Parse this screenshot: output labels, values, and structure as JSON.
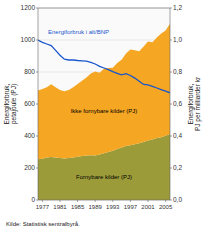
{
  "chart_data": {
    "type": "area",
    "stacked": true,
    "x": [
      1976,
      1977,
      1978,
      1979,
      1980,
      1981,
      1982,
      1983,
      1984,
      1985,
      1986,
      1987,
      1988,
      1989,
      1990,
      1991,
      1992,
      1993,
      1994,
      1995,
      1996,
      1997,
      1998,
      1999,
      2000,
      2001,
      2002,
      2003,
      2004,
      2005,
      2006
    ],
    "series": [
      {
        "name": "Fornybare kilder (PJ)",
        "color": "#9B9B3A",
        "type": "area",
        "values": [
          255,
          258,
          265,
          268,
          265,
          262,
          260,
          262,
          265,
          270,
          275,
          278,
          280,
          278,
          285,
          292,
          300,
          308,
          318,
          328,
          338,
          342,
          348,
          355,
          362,
          372,
          378,
          388,
          392,
          402,
          412
        ]
      },
      {
        "name": "Ikke fornybare kilder (PJ)",
        "color": "#F5A623",
        "type": "area",
        "values": [
          430,
          435,
          440,
          455,
          440,
          425,
          420,
          425,
          440,
          455,
          470,
          488,
          510,
          525,
          510,
          528,
          525,
          518,
          538,
          548,
          578,
          598,
          588,
          575,
          598,
          618,
          608,
          628,
          648,
          658,
          690
        ]
      },
      {
        "name": "Energiforbruk i alt/BNP",
        "color": "#1A56CC",
        "type": "line",
        "axis": "y2",
        "values": [
          1.0,
          0.985,
          0.975,
          0.965,
          0.935,
          0.905,
          0.88,
          0.875,
          0.875,
          0.872,
          0.87,
          0.868,
          0.86,
          0.85,
          0.835,
          0.825,
          0.815,
          0.802,
          0.792,
          0.782,
          0.79,
          0.778,
          0.762,
          0.742,
          0.722,
          0.72,
          0.71,
          0.7,
          0.69,
          0.68,
          0.67
        ]
      }
    ],
    "xlim": [
      1976,
      2006
    ],
    "xticks": [
      1977,
      1981,
      1985,
      1989,
      1993,
      1997,
      2001,
      2005
    ],
    "ylim": [
      0,
      1200
    ],
    "yticks": [
      0,
      200,
      400,
      600,
      800,
      1000,
      1200
    ],
    "y2lim": [
      0.0,
      1.2
    ],
    "y2ticks": [
      {
        "value": 0.0,
        "label": "0,0"
      },
      {
        "value": 0.2,
        "label": "0,2"
      },
      {
        "value": 0.4,
        "label": "0,4"
      },
      {
        "value": 0.6,
        "label": "0,6"
      },
      {
        "value": 0.8,
        "label": "0,8"
      },
      {
        "value": 1.0,
        "label": "1,0"
      },
      {
        "value": 1.2,
        "label": "1,2"
      }
    ],
    "ylabel": "Energiforbruk,\npetajoule (PJ)",
    "y2label": "Energiforbruk,\nPJ per milliarder kr",
    "source": "Kilde: Statistisk sentralbyrå.",
    "grid": true
  }
}
